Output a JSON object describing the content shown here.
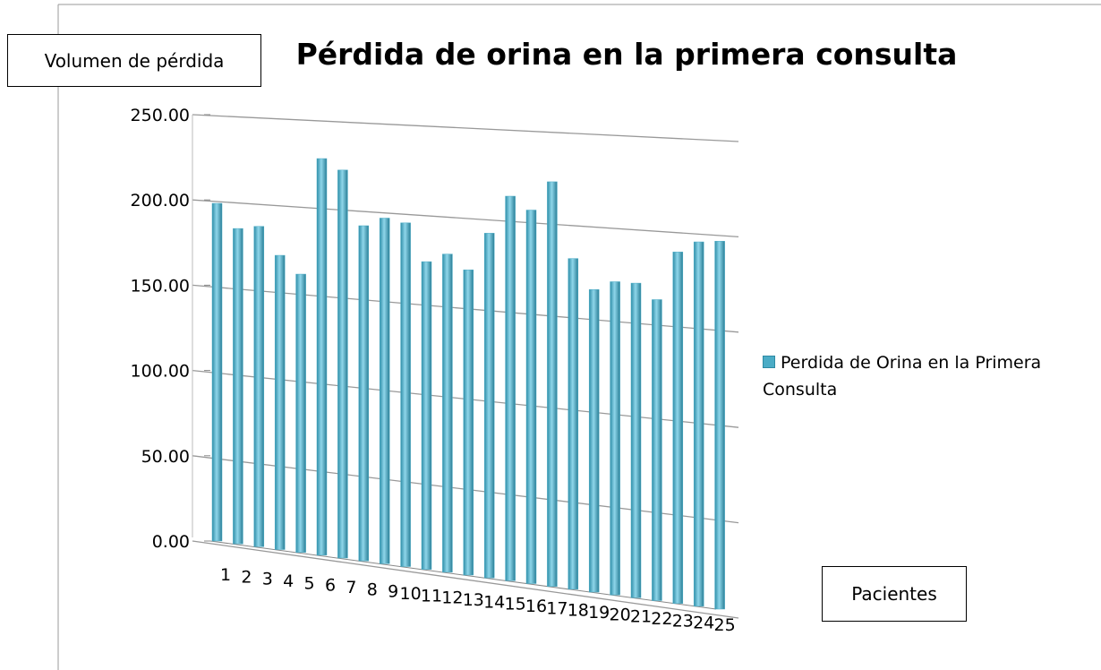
{
  "chart_data": {
    "type": "bar3d",
    "title": "Pérdida de orina en la primera consulta",
    "y_label": "Volumen de pérdida",
    "x_label": "Pacientes",
    "categories": [
      "1",
      "2",
      "3",
      "4",
      "5",
      "6",
      "7",
      "8",
      "9",
      "10",
      "11",
      "12",
      "13",
      "14",
      "15",
      "16",
      "17",
      "18",
      "19",
      "20",
      "21",
      "22",
      "23",
      "24",
      "25"
    ],
    "series": [
      {
        "name": "Perdida de Orina en la Primera Consulta",
        "color": "#4bacc6",
        "values": [
          198,
          184,
          186,
          170,
          160,
          227,
          221,
          190,
          195,
          193,
          172,
          177,
          169,
          190,
          211,
          204,
          220,
          179,
          163,
          168,
          168,
          160,
          186,
          192,
          193
        ]
      }
    ],
    "ylim": [
      0,
      250
    ],
    "yticks": [
      {
        "value": 0,
        "label": "0.00"
      },
      {
        "value": 50,
        "label": "50.00"
      },
      {
        "value": 100,
        "label": "100.00"
      },
      {
        "value": 150,
        "label": "150.00"
      },
      {
        "value": 200,
        "label": "200.00"
      },
      {
        "value": 250,
        "label": "250.00"
      }
    ],
    "grid": true
  }
}
